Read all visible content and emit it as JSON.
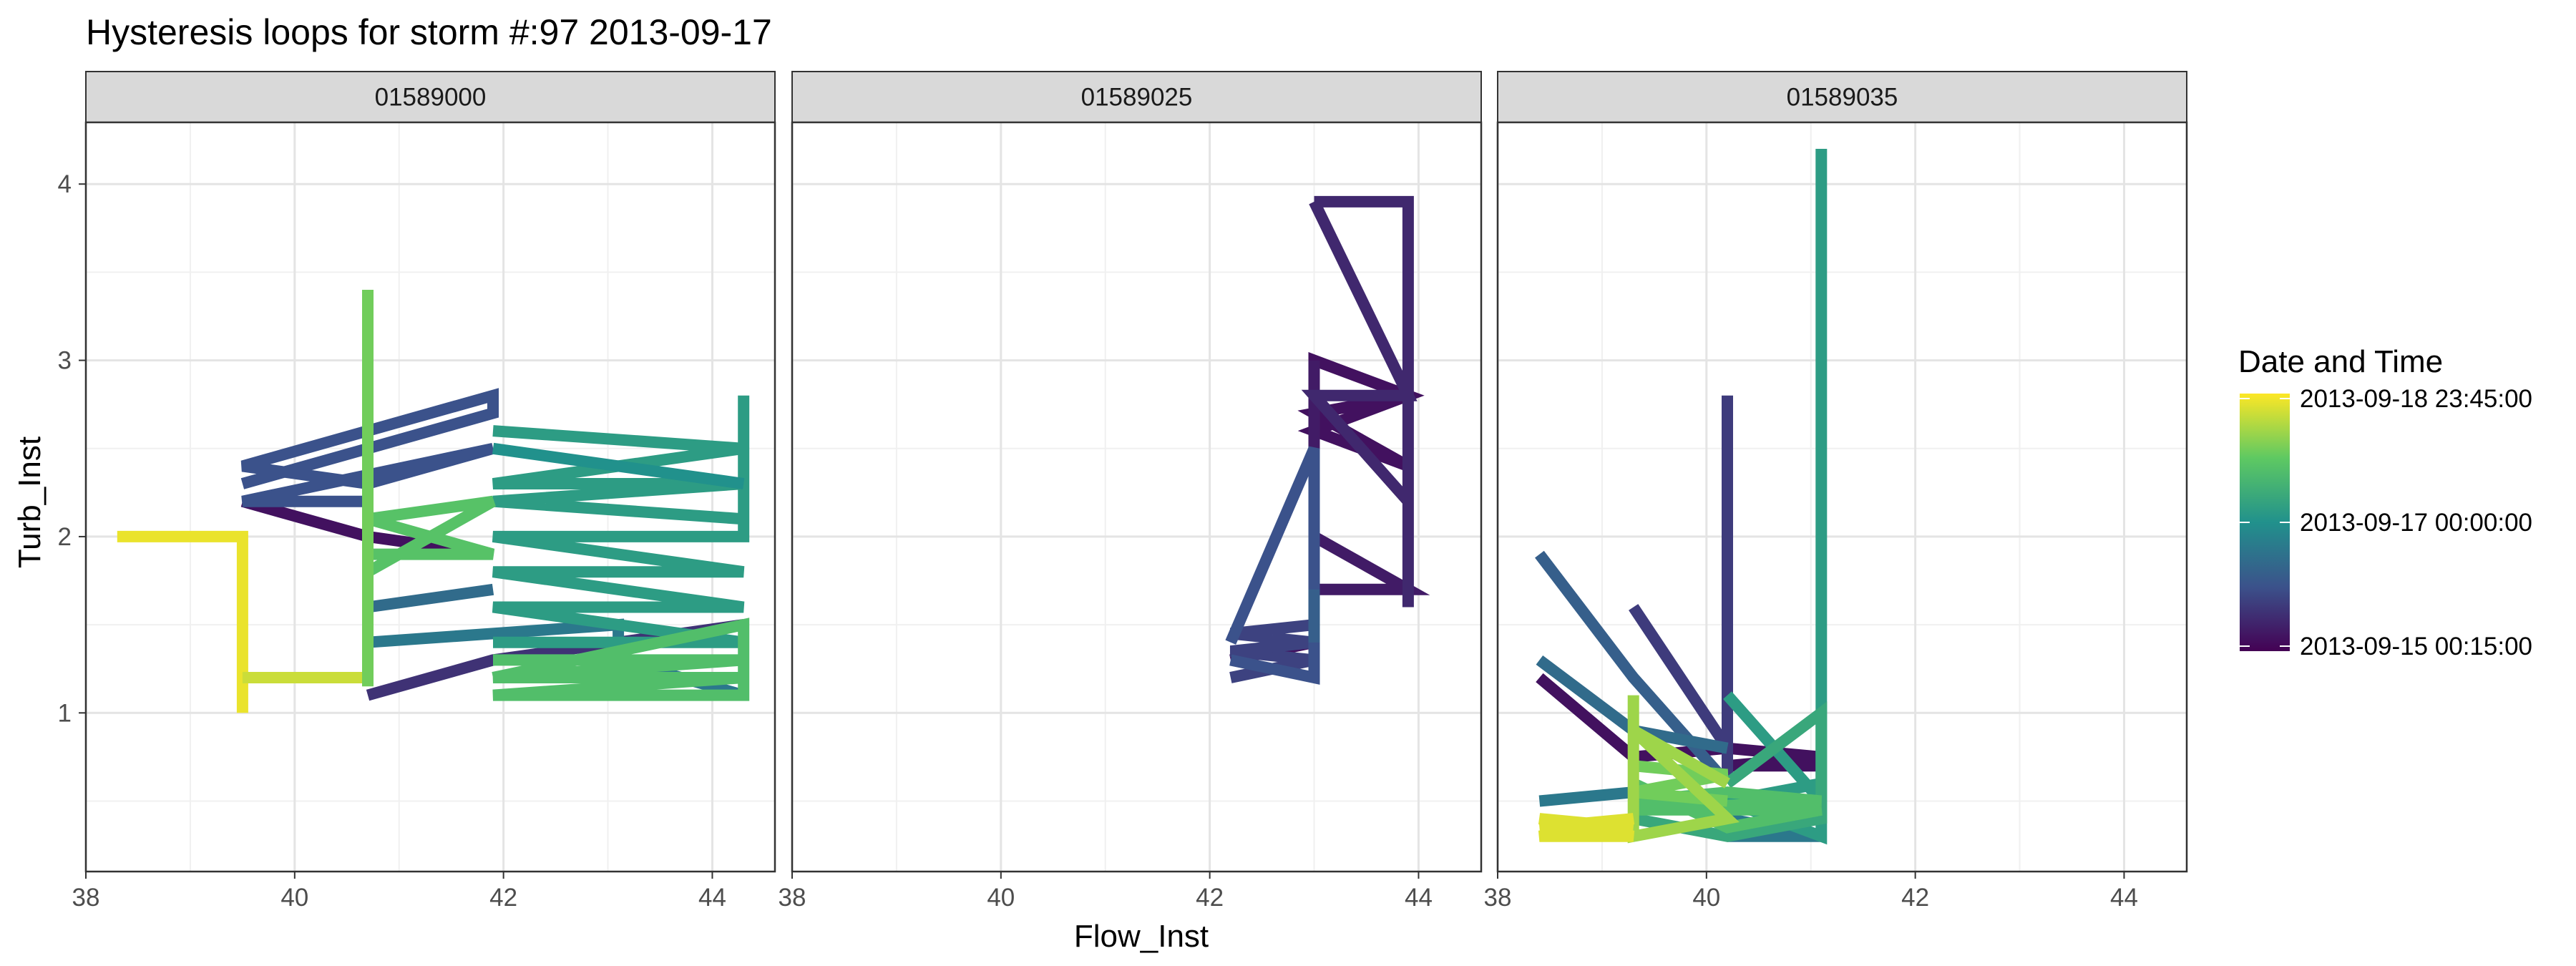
{
  "chart_data": {
    "type": "line",
    "title": "Hysteresis loops for storm #:97   2013-09-17",
    "xlabel": "Flow_Inst",
    "ylabel": "Turb_Inst",
    "xlim": [
      38,
      44.6
    ],
    "ylim": [
      0.1,
      4.35
    ],
    "x_ticks": [
      38,
      40,
      42,
      44
    ],
    "y_ticks": [
      1,
      2,
      3,
      4
    ],
    "grid": true,
    "legend": {
      "title": "Date and Time",
      "placement": "right",
      "type": "colorbar",
      "colors": [
        "#440154",
        "#3b528b",
        "#21918c",
        "#5ec962",
        "#fde725"
      ],
      "labels": [
        "2013-09-18 23:45:00",
        "2013-09-17 00:00:00",
        "2013-09-15 00:15:00"
      ],
      "label_fractions": [
        1.0,
        0.5,
        0.0
      ]
    },
    "panels": [
      {
        "name": "01589000",
        "segments": [
          {
            "c": 0.97,
            "pts": [
              [
                38.3,
                2.0
              ],
              [
                39.5,
                2.0
              ],
              [
                39.5,
                1.0
              ]
            ]
          },
          {
            "c": 0.92,
            "pts": [
              [
                39.5,
                1.2
              ],
              [
                40.7,
                1.2
              ]
            ]
          },
          {
            "c": 0.05,
            "pts": [
              [
                39.5,
                2.2
              ],
              [
                40.7,
                2.0
              ],
              [
                41.9,
                1.9
              ]
            ]
          },
          {
            "c": 0.15,
            "pts": [
              [
                40.7,
                1.1
              ],
              [
                41.9,
                1.3
              ],
              [
                43.1,
                1.4
              ],
              [
                44.3,
                1.5
              ]
            ]
          },
          {
            "c": 0.25,
            "pts": [
              [
                39.5,
                2.3
              ],
              [
                40.7,
                2.5
              ],
              [
                41.9,
                2.7
              ],
              [
                41.9,
                2.8
              ],
              [
                39.5,
                2.4
              ],
              [
                40.7,
                2.3
              ],
              [
                41.9,
                2.5
              ],
              [
                39.5,
                2.2
              ],
              [
                40.7,
                2.2
              ]
            ]
          },
          {
            "c": 0.35,
            "pts": [
              [
                40.7,
                1.6
              ],
              [
                41.9,
                1.7
              ]
            ]
          },
          {
            "c": 0.4,
            "pts": [
              [
                40.7,
                1.4
              ],
              [
                41.9,
                1.45
              ],
              [
                43.1,
                1.5
              ],
              [
                43.1,
                1.3
              ],
              [
                44.3,
                1.1
              ]
            ]
          },
          {
            "c": 0.55,
            "pts": [
              [
                41.9,
                2.6
              ],
              [
                44.3,
                2.5
              ],
              [
                41.9,
                2.3
              ],
              [
                44.3,
                2.3
              ],
              [
                41.9,
                2.2
              ],
              [
                44.3,
                2.1
              ],
              [
                44.3,
                2.8
              ],
              [
                44.3,
                2.0
              ],
              [
                41.9,
                2.0
              ],
              [
                44.3,
                1.8
              ],
              [
                41.9,
                1.8
              ],
              [
                44.3,
                1.6
              ],
              [
                41.9,
                1.6
              ],
              [
                44.3,
                1.4
              ],
              [
                41.9,
                1.4
              ]
            ]
          },
          {
            "c": 0.5,
            "pts": [
              [
                41.9,
                2.5
              ],
              [
                44.3,
                2.3
              ]
            ]
          },
          {
            "c": 0.7,
            "pts": [
              [
                41.9,
                1.3
              ],
              [
                44.3,
                1.3
              ],
              [
                41.9,
                1.2
              ],
              [
                44.3,
                1.2
              ],
              [
                41.9,
                1.1
              ],
              [
                44.3,
                1.1
              ],
              [
                44.3,
                1.5
              ],
              [
                41.9,
                1.2
              ]
            ]
          },
          {
            "c": 0.72,
            "pts": [
              [
                40.7,
                1.9
              ],
              [
                41.9,
                1.9
              ],
              [
                40.7,
                2.1
              ],
              [
                41.9,
                2.2
              ],
              [
                40.7,
                1.8
              ]
            ]
          },
          {
            "c": 0.78,
            "pts": [
              [
                40.7,
                3.4
              ],
              [
                40.7,
                1.15
              ]
            ]
          }
        ]
      },
      {
        "name": "01589025",
        "segments": [
          {
            "c": 0.05,
            "pts": [
              [
                42.2,
                1.3
              ],
              [
                43.0,
                1.4
              ],
              [
                43.0,
                2.5
              ],
              [
                43.0,
                3.0
              ],
              [
                43.9,
                2.8
              ],
              [
                43.0,
                2.6
              ],
              [
                43.9,
                2.4
              ],
              [
                43.0,
                2.7
              ],
              [
                43.9,
                2.8
              ]
            ]
          },
          {
            "c": 0.08,
            "pts": [
              [
                43.0,
                2.0
              ],
              [
                43.9,
                1.7
              ],
              [
                43.0,
                1.7
              ],
              [
                43.0,
                3.0
              ]
            ]
          },
          {
            "c": 0.12,
            "pts": [
              [
                43.0,
                3.9
              ],
              [
                43.9,
                3.9
              ],
              [
                43.9,
                1.6
              ],
              [
                43.9,
                2.2
              ],
              [
                43.0,
                2.8
              ],
              [
                43.9,
                2.8
              ],
              [
                43.0,
                3.9
              ]
            ]
          },
          {
            "c": 0.2,
            "pts": [
              [
                42.2,
                1.2
              ],
              [
                43.0,
                1.3
              ],
              [
                42.2,
                1.35
              ],
              [
                43.0,
                1.4
              ],
              [
                42.2,
                1.45
              ],
              [
                43.0,
                1.5
              ]
            ]
          },
          {
            "c": 0.25,
            "pts": [
              [
                42.2,
                1.4
              ],
              [
                43.0,
                2.5
              ],
              [
                43.0,
                1.2
              ],
              [
                42.2,
                1.3
              ]
            ]
          },
          {
            "c": 0.3,
            "pts": [
              [
                43.0,
                1.4
              ],
              [
                43.0,
                1.7
              ]
            ]
          }
        ]
      },
      {
        "name": "01589035",
        "segments": [
          {
            "c": 0.05,
            "pts": [
              [
                38.4,
                1.2
              ],
              [
                39.3,
                0.75
              ],
              [
                40.2,
                0.8
              ],
              [
                41.1,
                0.75
              ],
              [
                40.2,
                0.7
              ],
              [
                41.1,
                0.7
              ]
            ]
          },
          {
            "c": 0.18,
            "pts": [
              [
                39.3,
                1.6
              ],
              [
                40.2,
                0.8
              ],
              [
                40.2,
                2.8
              ],
              [
                40.2,
                0.6
              ]
            ]
          },
          {
            "c": 0.3,
            "pts": [
              [
                38.4,
                1.9
              ],
              [
                39.3,
                1.2
              ],
              [
                40.2,
                0.6
              ]
            ]
          },
          {
            "c": 0.35,
            "pts": [
              [
                38.4,
                1.3
              ],
              [
                39.3,
                0.9
              ],
              [
                40.2,
                0.8
              ]
            ]
          },
          {
            "c": 0.4,
            "pts": [
              [
                38.4,
                0.5
              ],
              [
                39.3,
                0.55
              ],
              [
                40.2,
                0.4
              ],
              [
                41.1,
                0.3
              ],
              [
                40.2,
                0.3
              ]
            ]
          },
          {
            "c": 0.55,
            "pts": [
              [
                40.2,
                1.1
              ],
              [
                41.1,
                0.5
              ],
              [
                41.1,
                4.2
              ],
              [
                41.1,
                0.3
              ],
              [
                40.2,
                0.5
              ],
              [
                41.1,
                0.6
              ]
            ]
          },
          {
            "c": 0.6,
            "pts": [
              [
                40.2,
                0.6
              ],
              [
                41.1,
                1.0
              ],
              [
                41.1,
                0.4
              ],
              [
                40.2,
                0.3
              ],
              [
                39.3,
                0.4
              ]
            ]
          },
          {
            "c": 0.7,
            "pts": [
              [
                39.3,
                0.5
              ],
              [
                40.2,
                0.55
              ],
              [
                41.1,
                0.5
              ],
              [
                39.3,
                0.45
              ],
              [
                40.2,
                0.45
              ],
              [
                41.1,
                0.45
              ],
              [
                40.2,
                0.35
              ],
              [
                39.3,
                0.6
              ]
            ]
          },
          {
            "c": 0.78,
            "pts": [
              [
                39.3,
                0.7
              ],
              [
                40.2,
                0.65
              ],
              [
                39.3,
                0.55
              ],
              [
                40.2,
                0.5
              ]
            ]
          },
          {
            "c": 0.85,
            "pts": [
              [
                39.3,
                1.1
              ],
              [
                39.3,
                0.3
              ],
              [
                40.2,
                0.4
              ],
              [
                39.3,
                0.9
              ],
              [
                40.2,
                0.6
              ]
            ]
          },
          {
            "c": 0.95,
            "pts": [
              [
                38.4,
                0.35
              ],
              [
                39.3,
                0.4
              ],
              [
                38.4,
                0.3
              ],
              [
                39.3,
                0.3
              ],
              [
                38.4,
                0.4
              ],
              [
                39.3,
                0.35
              ]
            ]
          }
        ]
      }
    ]
  }
}
